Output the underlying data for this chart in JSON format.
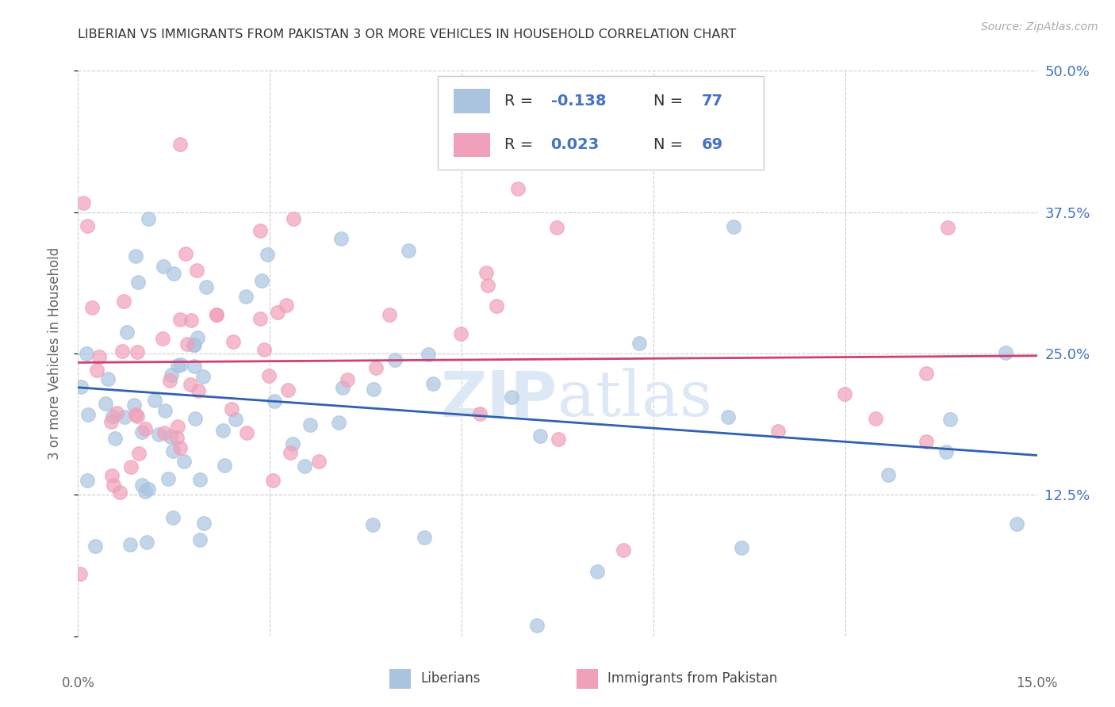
{
  "title": "LIBERIAN VS IMMIGRANTS FROM PAKISTAN 3 OR MORE VEHICLES IN HOUSEHOLD CORRELATION CHART",
  "source": "Source: ZipAtlas.com",
  "ylabel": "3 or more Vehicles in Household",
  "ytick_vals": [
    0.0,
    12.5,
    25.0,
    37.5,
    50.0
  ],
  "ytick_labels": [
    "",
    "12.5%",
    "25.0%",
    "37.5%",
    "50.0%"
  ],
  "xmin": 0.0,
  "xmax": 15.0,
  "ymin": 0.0,
  "ymax": 50.0,
  "liberian_color": "#aac4e0",
  "pakistan_color": "#f0a0b8",
  "liberian_line_color": "#3060b0",
  "pakistan_line_color": "#d04070",
  "liberian_R": -0.138,
  "liberian_N": 77,
  "pakistan_R": 0.023,
  "pakistan_N": 69,
  "legend_label_1": "Liberians",
  "legend_label_2": "Immigrants from Pakistan",
  "background_color": "#ffffff",
  "grid_color": "#cccccc",
  "watermark_color": "#dce8f5",
  "title_color": "#333333",
  "axis_label_color": "#666666",
  "tick_label_color": "#4472c4",
  "source_color": "#aaaaaa",
  "lib_line_y0": 22.0,
  "lib_line_y1": 16.0,
  "pak_line_y0": 24.2,
  "pak_line_y1": 24.8
}
